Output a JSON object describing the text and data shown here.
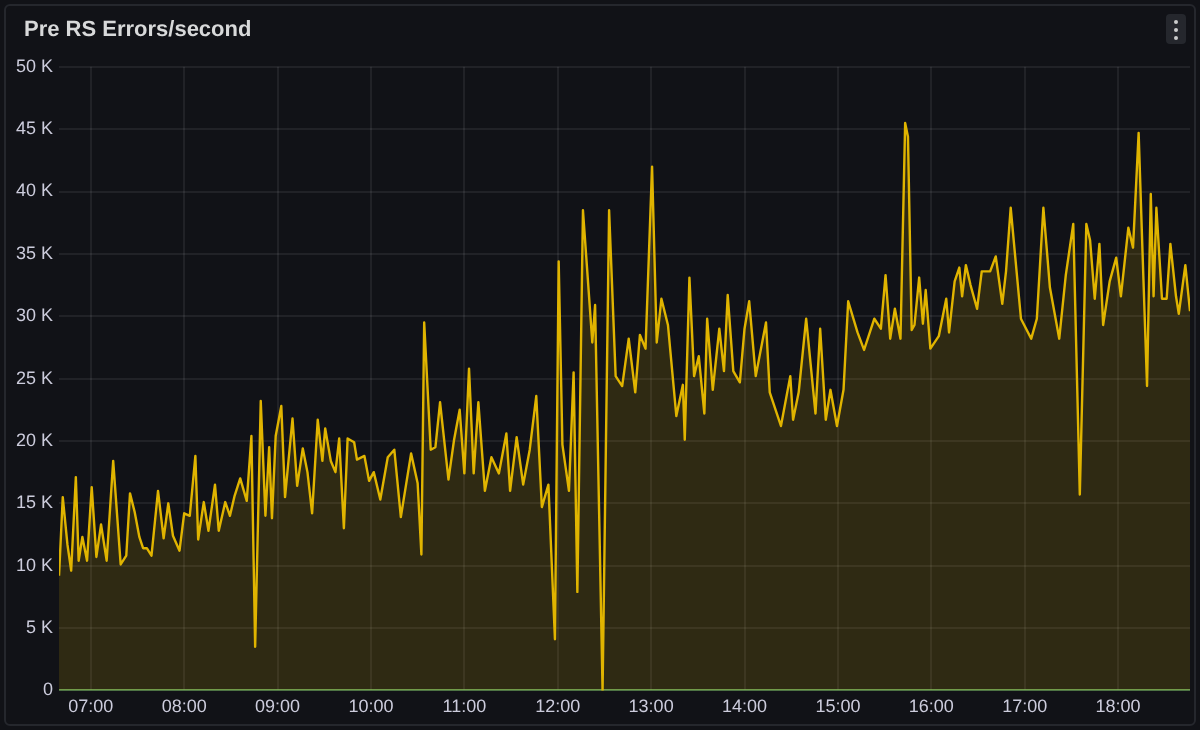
{
  "chart_data": {
    "type": "area",
    "title": "Pre RS Errors/second",
    "x": [
      6.66,
      6.7,
      6.75,
      6.79,
      6.84,
      6.87,
      6.91,
      6.96,
      7.01,
      7.06,
      7.11,
      7.17,
      7.24,
      7.32,
      7.38,
      7.42,
      7.47,
      7.52,
      7.56,
      7.6,
      7.65,
      7.72,
      7.78,
      7.83,
      7.88,
      7.95,
      8.0,
      8.06,
      8.12,
      8.15,
      8.21,
      8.26,
      8.33,
      8.37,
      8.44,
      8.49,
      8.54,
      8.6,
      8.67,
      8.72,
      8.76,
      8.82,
      8.87,
      8.91,
      8.94,
      8.98,
      9.04,
      9.08,
      9.16,
      9.21,
      9.27,
      9.32,
      9.37,
      9.43,
      9.48,
      9.51,
      9.57,
      9.62,
      9.66,
      9.71,
      9.75,
      9.82,
      9.85,
      9.93,
      9.98,
      10.03,
      10.1,
      10.18,
      10.25,
      10.32,
      10.43,
      10.5,
      10.54,
      10.57,
      10.64,
      10.69,
      10.74,
      10.83,
      10.89,
      10.95,
      11.0,
      11.05,
      11.1,
      11.15,
      11.22,
      11.29,
      11.37,
      11.45,
      11.49,
      11.56,
      11.63,
      11.7,
      11.77,
      11.83,
      11.9,
      11.97,
      12.01,
      12.05,
      12.12,
      12.17,
      12.21,
      12.27,
      12.37,
      12.4,
      12.48,
      12.55,
      12.62,
      12.69,
      12.76,
      12.83,
      12.88,
      12.94,
      13.01,
      13.06,
      13.11,
      13.18,
      13.27,
      13.34,
      13.36,
      13.41,
      13.46,
      13.51,
      13.57,
      13.6,
      13.66,
      13.73,
      13.78,
      13.82,
      13.88,
      13.95,
      14.0,
      14.05,
      14.12,
      14.23,
      14.27,
      14.39,
      14.49,
      14.52,
      14.58,
      14.66,
      14.76,
      14.81,
      14.87,
      14.92,
      14.99,
      15.06,
      15.11,
      15.21,
      15.28,
      15.39,
      15.46,
      15.51,
      15.56,
      15.61,
      15.67,
      15.72,
      15.75,
      15.79,
      15.82,
      15.87,
      15.91,
      15.94,
      15.99,
      16.08,
      16.16,
      16.19,
      16.25,
      16.3,
      16.33,
      16.37,
      16.42,
      16.49,
      16.54,
      16.63,
      16.69,
      16.76,
      16.8,
      16.85,
      16.96,
      17.07,
      17.13,
      17.2,
      17.27,
      17.37,
      17.44,
      17.52,
      17.59,
      17.66,
      17.7,
      17.75,
      17.8,
      17.84,
      17.91,
      17.98,
      18.03,
      18.11,
      18.16,
      18.22,
      18.26,
      18.31,
      18.35,
      18.38,
      18.41,
      18.47,
      18.52,
      18.56,
      18.62,
      18.65,
      18.72,
      18.77
    ],
    "series": [
      {
        "color": "#e0b400",
        "values": [
          9.2,
          15.5,
          11.7,
          9.6,
          17.1,
          10.4,
          12.3,
          10.4,
          16.3,
          10.7,
          13.3,
          10.4,
          18.4,
          10.1,
          10.8,
          15.8,
          14.3,
          12.3,
          11.4,
          11.4,
          10.8,
          16.0,
          12.2,
          15.0,
          12.4,
          11.2,
          14.2,
          14.0,
          18.8,
          12.1,
          15.1,
          12.8,
          16.5,
          12.8,
          15.1,
          14.0,
          15.6,
          17.0,
          15.2,
          20.4,
          3.5,
          23.2,
          14.0,
          19.5,
          13.8,
          20.4,
          22.8,
          15.5,
          21.8,
          16.4,
          19.4,
          17.5,
          14.2,
          21.7,
          18.4,
          21.0,
          18.4,
          17.5,
          20.2,
          13.0,
          20.2,
          19.9,
          18.5,
          18.8,
          16.8,
          17.5,
          15.3,
          18.7,
          19.3,
          13.9,
          19.0,
          16.6,
          10.9,
          29.5,
          19.3,
          19.5,
          23.1,
          16.9,
          20.1,
          22.5,
          17.4,
          25.8,
          17.4,
          23.1,
          16.0,
          18.7,
          17.4,
          20.6,
          16.0,
          20.3,
          16.5,
          19.3,
          23.6,
          14.7,
          16.5,
          4.1,
          34.4,
          19.7,
          16.0,
          25.5,
          7.9,
          38.5,
          27.9,
          30.9,
          0,
          38.5,
          25.2,
          24.4,
          28.2,
          23.9,
          28.5,
          27.4,
          42.0,
          27.9,
          31.4,
          29.3,
          22.0,
          24.5,
          20.1,
          33.1,
          25.2,
          26.8,
          22.2,
          29.8,
          24.1,
          29.0,
          25.6,
          31.7,
          25.6,
          24.7,
          29.0,
          31.2,
          25.2,
          29.5,
          23.9,
          21.2,
          25.2,
          21.7,
          23.9,
          29.8,
          22.2,
          29.0,
          21.7,
          24.1,
          21.2,
          24.1,
          31.2,
          28.7,
          27.3,
          29.8,
          29.0,
          33.3,
          28.2,
          30.6,
          28.2,
          45.5,
          44.4,
          28.9,
          29.3,
          33.1,
          29.4,
          32.1,
          27.4,
          28.4,
          31.4,
          28.7,
          32.8,
          33.9,
          31.6,
          34.1,
          32.5,
          30.6,
          33.6,
          33.6,
          34.8,
          31.0,
          33.6,
          38.7,
          29.8,
          28.2,
          29.8,
          38.7,
          32.3,
          28.2,
          33.3,
          37.4,
          15.7,
          37.4,
          36.1,
          31.4,
          35.8,
          29.3,
          32.8,
          34.7,
          31.6,
          37.1,
          35.5,
          44.7,
          35.5,
          24.4,
          39.8,
          31.6,
          38.7,
          31.4,
          31.4,
          35.8,
          31.6,
          30.2,
          34.1,
          30.4
        ]
      },
      {
        "type": "line",
        "color": "#73bf69",
        "x": [
          6.66,
          18.77
        ],
        "values": [
          0,
          0
        ]
      }
    ],
    "xlim": [
      6.66,
      18.77
    ],
    "xticks": [
      {
        "value": 7,
        "label": "07:00"
      },
      {
        "value": 8,
        "label": "08:00"
      },
      {
        "value": 9,
        "label": "09:00"
      },
      {
        "value": 10,
        "label": "10:00"
      },
      {
        "value": 11,
        "label": "11:00"
      },
      {
        "value": 12,
        "label": "12:00"
      },
      {
        "value": 13,
        "label": "13:00"
      },
      {
        "value": 14,
        "label": "14:00"
      },
      {
        "value": 15,
        "label": "15:00"
      },
      {
        "value": 16,
        "label": "16:00"
      },
      {
        "value": 17,
        "label": "17:00"
      },
      {
        "value": 18,
        "label": "18:00"
      }
    ],
    "ylim": [
      0,
      50
    ],
    "yticks": [
      0,
      {
        "value": 5,
        "label": "5 K"
      },
      {
        "value": 10,
        "label": "10 K"
      },
      {
        "value": 15,
        "label": "15 K"
      },
      {
        "value": 20,
        "label": "20 K"
      },
      {
        "value": 25,
        "label": "25 K"
      },
      {
        "value": 30,
        "label": "30 K"
      },
      {
        "value": 35,
        "label": "35 K"
      },
      {
        "value": 40,
        "label": "40 K"
      },
      {
        "value": 45,
        "label": "45 K"
      },
      {
        "value": 50,
        "label": "50 K"
      }
    ],
    "grid": true,
    "legend": false,
    "marker": "none",
    "line_style": "solid"
  }
}
